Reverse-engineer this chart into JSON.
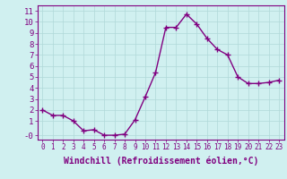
{
  "x": [
    0,
    1,
    2,
    3,
    4,
    5,
    6,
    7,
    8,
    9,
    10,
    11,
    12,
    13,
    14,
    15,
    16,
    17,
    18,
    19,
    20,
    21,
    22,
    23
  ],
  "y": [
    2.0,
    1.5,
    1.5,
    1.0,
    0.1,
    0.2,
    -0.3,
    -0.3,
    -0.2,
    1.1,
    3.2,
    5.4,
    9.5,
    9.5,
    10.7,
    9.8,
    8.5,
    7.5,
    7.0,
    5.0,
    4.4,
    4.4,
    4.5,
    4.7
  ],
  "line_color": "#800080",
  "marker": "+",
  "marker_size": 4,
  "marker_linewidth": 1.0,
  "bg_color": "#d0f0f0",
  "grid_color": "#b0d8d8",
  "xlabel": "Windchill (Refroidissement éolien,°C)",
  "xlabel_fontsize": 7,
  "ytick_labels": [
    "-0",
    "1",
    "2",
    "3",
    "4",
    "5",
    "6",
    "7",
    "8",
    "9",
    "10",
    "11"
  ],
  "ytick_values": [
    -0.3,
    1,
    2,
    3,
    4,
    5,
    6,
    7,
    8,
    9,
    10,
    11
  ],
  "ylim": [
    -0.7,
    11.5
  ],
  "xlim": [
    -0.5,
    23.5
  ],
  "xtick_values": [
    0,
    1,
    2,
    3,
    4,
    5,
    6,
    7,
    8,
    9,
    10,
    11,
    12,
    13,
    14,
    15,
    16,
    17,
    18,
    19,
    20,
    21,
    22,
    23
  ],
  "xtick_fontsize": 5.5,
  "ytick_fontsize": 6.5,
  "linewidth": 1.0,
  "spine_color": "#800080",
  "tick_color": "#800080",
  "grid_linewidth": 0.5
}
